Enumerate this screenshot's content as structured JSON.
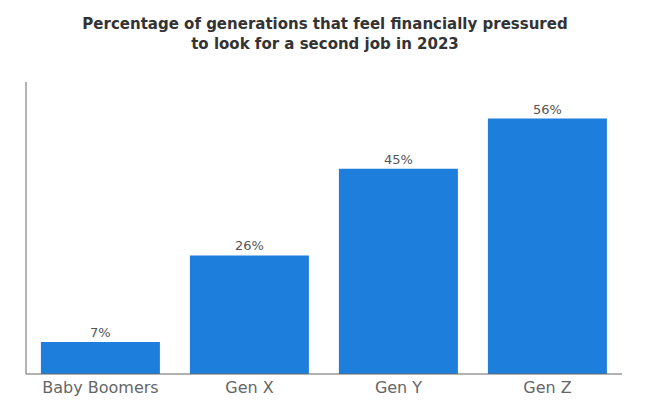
{
  "chart_data": {
    "type": "bar",
    "title": "Percentage of generations that feel financially pressured\nto look for a second job in 2023",
    "categories": [
      "Baby Boomers",
      "Gen X",
      "Gen Y",
      "Gen Z"
    ],
    "values": [
      7,
      26,
      45,
      56
    ],
    "value_labels": [
      "7%",
      "26%",
      "45%",
      "56%"
    ],
    "color": "#1e7edc",
    "ylim": [
      0,
      64
    ],
    "grid": false,
    "data_labels": true,
    "tick_labels": "x"
  }
}
